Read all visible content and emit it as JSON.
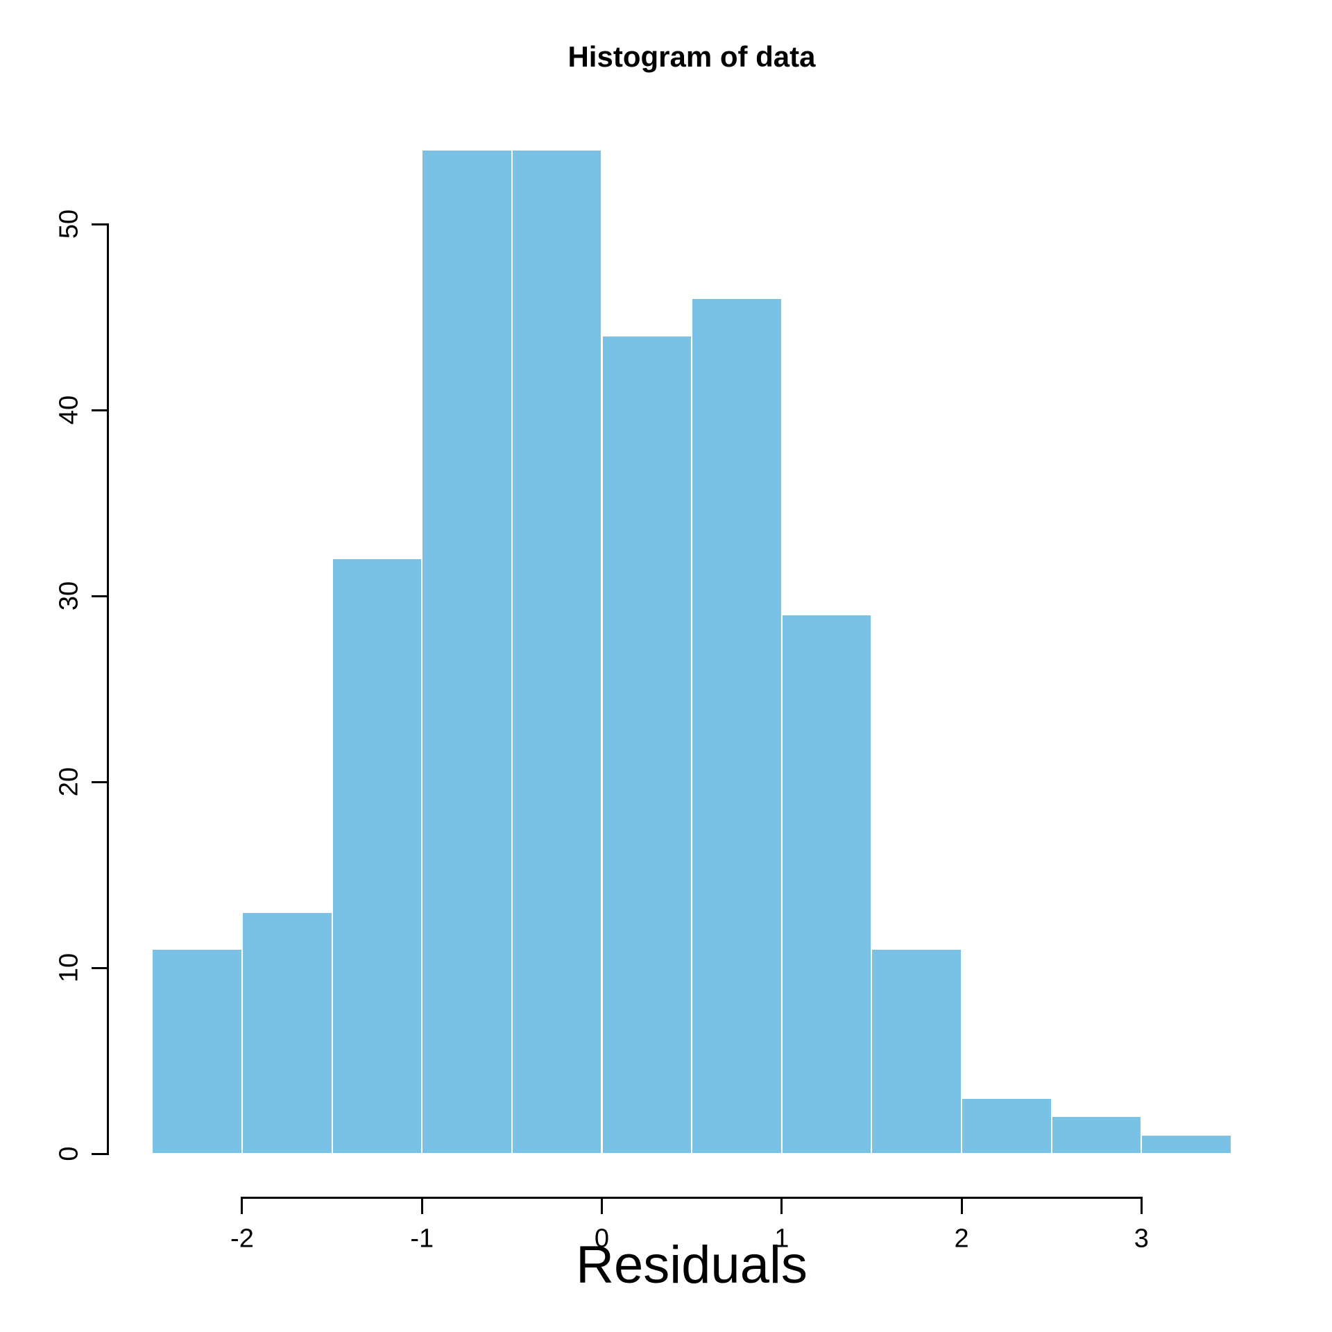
{
  "page": {
    "background": "#FFFFFF"
  },
  "chart_data": {
    "type": "bar",
    "subtype": "histogram",
    "title": "Histogram of data",
    "xlabel": "Residuals",
    "ylabel": "",
    "bin_breaks": [
      -2.5,
      -2.0,
      -1.5,
      -1.0,
      -0.5,
      0.0,
      0.5,
      1.0,
      1.5,
      2.0,
      2.5,
      3.0,
      3.5
    ],
    "counts": [
      11,
      13,
      32,
      54,
      54,
      44,
      46,
      29,
      11,
      3,
      2,
      1
    ],
    "x_ticks": [
      -2,
      -1,
      0,
      1,
      2,
      3
    ],
    "x_tick_labels": [
      "-2",
      "-1",
      "0",
      "1",
      "2",
      "3"
    ],
    "y_ticks": [
      0,
      10,
      20,
      30,
      40,
      50
    ],
    "y_tick_labels": [
      "0",
      "10",
      "20",
      "30",
      "40",
      "50"
    ],
    "xlim": [
      -2.5,
      3.5
    ],
    "ylim": [
      0,
      54
    ],
    "grid": false,
    "legend": "none",
    "bar_fill": "#7AC2E5",
    "bar_border": "#FFFFFF",
    "axis_color": "#000000",
    "text_color": "#000000"
  }
}
